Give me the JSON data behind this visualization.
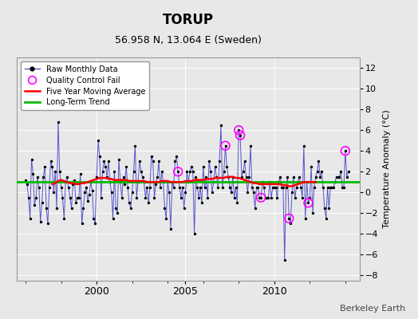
{
  "title": "TORUP",
  "subtitle": "56.958 N, 13.064 E (Sweden)",
  "ylabel": "Temperature Anomaly (°C)",
  "watermark": "Berkeley Earth",
  "ylim": [
    -8.5,
    13.0
  ],
  "xlim": [
    1995.5,
    2014.8
  ],
  "yticks": [
    -8,
    -6,
    -4,
    -2,
    0,
    2,
    4,
    6,
    8,
    10,
    12
  ],
  "bg_color": "#e8e8e8",
  "plot_bg_color": "#e8e8e8",
  "grid_color": "white",
  "raw_color": "#5555cc",
  "raw_dot_color": "black",
  "moving_avg_color": "red",
  "trend_color": "#00bb00",
  "qc_fail_color": "magenta",
  "long_term_trend_value": 1.0,
  "raw_data": [
    [
      1996.0,
      1.2
    ],
    [
      1996.083,
      0.8
    ],
    [
      1996.167,
      -0.5
    ],
    [
      1996.25,
      -2.5
    ],
    [
      1996.333,
      3.2
    ],
    [
      1996.417,
      1.8
    ],
    [
      1996.5,
      -1.2
    ],
    [
      1996.583,
      -0.5
    ],
    [
      1996.667,
      1.5
    ],
    [
      1996.75,
      0.5
    ],
    [
      1996.833,
      -2.8
    ],
    [
      1996.917,
      -1.0
    ],
    [
      1997.0,
      1.5
    ],
    [
      1997.083,
      2.5
    ],
    [
      1997.167,
      -1.5
    ],
    [
      1997.25,
      -3.0
    ],
    [
      1997.333,
      0.5
    ],
    [
      1997.417,
      3.0
    ],
    [
      1997.5,
      2.5
    ],
    [
      1997.583,
      0.0
    ],
    [
      1997.667,
      2.0
    ],
    [
      1997.75,
      -1.5
    ],
    [
      1997.833,
      6.8
    ],
    [
      1997.917,
      2.0
    ],
    [
      1998.0,
      0.5
    ],
    [
      1998.083,
      -0.5
    ],
    [
      1998.167,
      -2.5
    ],
    [
      1998.25,
      1.0
    ],
    [
      1998.333,
      1.5
    ],
    [
      1998.417,
      0.5
    ],
    [
      1998.5,
      -0.5
    ],
    [
      1998.583,
      -1.5
    ],
    [
      1998.667,
      0.8
    ],
    [
      1998.75,
      1.2
    ],
    [
      1998.833,
      -1.0
    ],
    [
      1998.917,
      -0.5
    ],
    [
      1999.0,
      -0.5
    ],
    [
      1999.083,
      1.8
    ],
    [
      1999.167,
      -3.0
    ],
    [
      1999.25,
      -1.5
    ],
    [
      1999.333,
      0.0
    ],
    [
      1999.417,
      0.5
    ],
    [
      1999.5,
      -0.8
    ],
    [
      1999.583,
      -0.2
    ],
    [
      1999.667,
      1.0
    ],
    [
      1999.75,
      0.2
    ],
    [
      1999.833,
      -2.5
    ],
    [
      1999.917,
      -3.0
    ],
    [
      2000.0,
      1.5
    ],
    [
      2000.083,
      5.0
    ],
    [
      2000.167,
      3.5
    ],
    [
      2000.25,
      -0.5
    ],
    [
      2000.333,
      2.0
    ],
    [
      2000.417,
      3.0
    ],
    [
      2000.5,
      2.5
    ],
    [
      2000.583,
      1.5
    ],
    [
      2000.667,
      3.0
    ],
    [
      2000.75,
      1.0
    ],
    [
      2000.833,
      0.0
    ],
    [
      2000.917,
      -2.5
    ],
    [
      2001.0,
      2.0
    ],
    [
      2001.083,
      -1.5
    ],
    [
      2001.167,
      -2.0
    ],
    [
      2001.25,
      3.2
    ],
    [
      2001.333,
      1.0
    ],
    [
      2001.417,
      -0.5
    ],
    [
      2001.5,
      1.5
    ],
    [
      2001.583,
      0.8
    ],
    [
      2001.667,
      2.5
    ],
    [
      2001.75,
      0.5
    ],
    [
      2001.833,
      -1.0
    ],
    [
      2001.917,
      -1.5
    ],
    [
      2002.0,
      0.0
    ],
    [
      2002.083,
      2.0
    ],
    [
      2002.167,
      4.5
    ],
    [
      2002.25,
      -0.5
    ],
    [
      2002.333,
      1.0
    ],
    [
      2002.417,
      3.0
    ],
    [
      2002.5,
      2.0
    ],
    [
      2002.583,
      1.5
    ],
    [
      2002.667,
      1.0
    ],
    [
      2002.75,
      -0.5
    ],
    [
      2002.833,
      0.5
    ],
    [
      2002.917,
      -1.0
    ],
    [
      2003.0,
      0.5
    ],
    [
      2003.083,
      3.5
    ],
    [
      2003.167,
      3.0
    ],
    [
      2003.25,
      -0.5
    ],
    [
      2003.333,
      0.8
    ],
    [
      2003.417,
      1.5
    ],
    [
      2003.5,
      3.0
    ],
    [
      2003.583,
      0.5
    ],
    [
      2003.667,
      2.0
    ],
    [
      2003.75,
      1.0
    ],
    [
      2003.833,
      -1.5
    ],
    [
      2003.917,
      -2.5
    ],
    [
      2004.0,
      1.0
    ],
    [
      2004.083,
      0.0
    ],
    [
      2004.167,
      -3.5
    ],
    [
      2004.25,
      1.0
    ],
    [
      2004.333,
      0.5
    ],
    [
      2004.417,
      3.0
    ],
    [
      2004.5,
      3.5
    ],
    [
      2004.583,
      2.0
    ],
    [
      2004.667,
      0.5
    ],
    [
      2004.75,
      -0.5
    ],
    [
      2004.833,
      0.5
    ],
    [
      2004.917,
      -1.5
    ],
    [
      2005.0,
      0.0
    ],
    [
      2005.083,
      2.0
    ],
    [
      2005.167,
      1.0
    ],
    [
      2005.25,
      2.0
    ],
    [
      2005.333,
      2.5
    ],
    [
      2005.417,
      2.0
    ],
    [
      2005.5,
      -4.0
    ],
    [
      2005.583,
      1.5
    ],
    [
      2005.667,
      0.5
    ],
    [
      2005.75,
      -0.5
    ],
    [
      2005.833,
      0.5
    ],
    [
      2005.917,
      -1.0
    ],
    [
      2006.0,
      2.5
    ],
    [
      2006.083,
      0.5
    ],
    [
      2006.167,
      1.5
    ],
    [
      2006.25,
      -0.5
    ],
    [
      2006.333,
      3.0
    ],
    [
      2006.417,
      2.0
    ],
    [
      2006.5,
      0.0
    ],
    [
      2006.583,
      1.0
    ],
    [
      2006.667,
      2.5
    ],
    [
      2006.75,
      1.5
    ],
    [
      2006.833,
      0.5
    ],
    [
      2006.917,
      3.0
    ],
    [
      2007.0,
      6.5
    ],
    [
      2007.083,
      0.5
    ],
    [
      2007.167,
      2.0
    ],
    [
      2007.25,
      4.5
    ],
    [
      2007.333,
      2.5
    ],
    [
      2007.417,
      1.5
    ],
    [
      2007.5,
      0.5
    ],
    [
      2007.583,
      0.0
    ],
    [
      2007.667,
      1.5
    ],
    [
      2007.75,
      -0.5
    ],
    [
      2007.833,
      0.5
    ],
    [
      2007.917,
      -1.0
    ],
    [
      2008.0,
      6.0
    ],
    [
      2008.083,
      5.5
    ],
    [
      2008.167,
      1.5
    ],
    [
      2008.25,
      2.0
    ],
    [
      2008.333,
      3.0
    ],
    [
      2008.417,
      1.5
    ],
    [
      2008.5,
      0.0
    ],
    [
      2008.583,
      1.5
    ],
    [
      2008.667,
      4.5
    ],
    [
      2008.75,
      0.5
    ],
    [
      2008.833,
      0.0
    ],
    [
      2008.917,
      -1.5
    ],
    [
      2009.0,
      0.5
    ],
    [
      2009.083,
      0.5
    ],
    [
      2009.167,
      -0.5
    ],
    [
      2009.25,
      -0.5
    ],
    [
      2009.333,
      1.0
    ],
    [
      2009.417,
      0.5
    ],
    [
      2009.5,
      -0.5
    ],
    [
      2009.583,
      -0.5
    ],
    [
      2009.667,
      -0.5
    ],
    [
      2009.75,
      1.0
    ],
    [
      2009.833,
      -0.5
    ],
    [
      2009.917,
      0.5
    ],
    [
      2010.0,
      0.5
    ],
    [
      2010.083,
      0.5
    ],
    [
      2010.167,
      -0.5
    ],
    [
      2010.25,
      1.0
    ],
    [
      2010.333,
      1.5
    ],
    [
      2010.417,
      0.5
    ],
    [
      2010.5,
      0.5
    ],
    [
      2010.583,
      -6.5
    ],
    [
      2010.667,
      0.5
    ],
    [
      2010.75,
      1.5
    ],
    [
      2010.833,
      -2.5
    ],
    [
      2010.917,
      -3.0
    ],
    [
      2011.0,
      0.0
    ],
    [
      2011.083,
      1.5
    ],
    [
      2011.167,
      -0.5
    ],
    [
      2011.25,
      0.5
    ],
    [
      2011.333,
      1.0
    ],
    [
      2011.417,
      1.5
    ],
    [
      2011.5,
      0.5
    ],
    [
      2011.583,
      -0.5
    ],
    [
      2011.667,
      4.5
    ],
    [
      2011.75,
      -2.5
    ],
    [
      2011.833,
      1.0
    ],
    [
      2011.917,
      -1.0
    ],
    [
      2012.0,
      -0.5
    ],
    [
      2012.083,
      2.5
    ],
    [
      2012.167,
      -2.0
    ],
    [
      2012.25,
      0.5
    ],
    [
      2012.333,
      1.5
    ],
    [
      2012.417,
      2.0
    ],
    [
      2012.5,
      3.0
    ],
    [
      2012.583,
      1.5
    ],
    [
      2012.667,
      2.0
    ],
    [
      2012.75,
      0.5
    ],
    [
      2012.833,
      -1.5
    ],
    [
      2012.917,
      -2.5
    ],
    [
      2013.0,
      0.5
    ],
    [
      2013.083,
      -1.5
    ],
    [
      2013.167,
      0.5
    ],
    [
      2013.25,
      0.5
    ],
    [
      2013.333,
      0.5
    ],
    [
      2013.417,
      1.0
    ],
    [
      2013.5,
      1.5
    ],
    [
      2013.583,
      1.5
    ],
    [
      2013.667,
      1.5
    ],
    [
      2013.75,
      2.0
    ],
    [
      2013.833,
      0.5
    ],
    [
      2013.917,
      0.5
    ],
    [
      2014.0,
      4.0
    ],
    [
      2014.083,
      1.5
    ],
    [
      2014.167,
      2.0
    ]
  ],
  "qc_fail_points": [
    [
      2004.583,
      2.0
    ],
    [
      2007.25,
      4.5
    ],
    [
      2008.0,
      6.0
    ],
    [
      2008.083,
      5.5
    ],
    [
      2009.25,
      -0.5
    ],
    [
      2010.833,
      -2.5
    ],
    [
      2011.917,
      -1.0
    ],
    [
      2014.0,
      4.0
    ]
  ],
  "moving_avg_data": [
    [
      1997.5,
      0.8
    ],
    [
      1997.667,
      0.9
    ],
    [
      1997.833,
      1.1
    ],
    [
      1998.0,
      1.2
    ],
    [
      1998.167,
      1.1
    ],
    [
      1998.333,
      1.0
    ],
    [
      1998.5,
      0.9
    ],
    [
      1998.667,
      0.9
    ],
    [
      1998.833,
      0.8
    ],
    [
      1999.0,
      0.8
    ],
    [
      1999.167,
      0.9
    ],
    [
      1999.333,
      0.9
    ],
    [
      1999.5,
      1.0
    ],
    [
      1999.667,
      1.1
    ],
    [
      1999.833,
      1.2
    ],
    [
      2000.0,
      1.3
    ],
    [
      2000.167,
      1.4
    ],
    [
      2000.333,
      1.4
    ],
    [
      2000.5,
      1.4
    ],
    [
      2000.667,
      1.3
    ],
    [
      2000.833,
      1.3
    ],
    [
      2001.0,
      1.2
    ],
    [
      2001.167,
      1.2
    ],
    [
      2001.333,
      1.2
    ],
    [
      2001.5,
      1.2
    ],
    [
      2001.667,
      1.2
    ],
    [
      2001.833,
      1.1
    ],
    [
      2002.0,
      1.1
    ],
    [
      2002.167,
      1.1
    ],
    [
      2002.333,
      1.1
    ],
    [
      2002.5,
      1.1
    ],
    [
      2002.667,
      1.1
    ],
    [
      2002.833,
      1.0
    ],
    [
      2003.0,
      1.0
    ],
    [
      2003.167,
      1.0
    ],
    [
      2003.333,
      1.0
    ],
    [
      2003.5,
      1.0
    ],
    [
      2003.667,
      1.1
    ],
    [
      2003.833,
      1.1
    ],
    [
      2004.0,
      1.1
    ],
    [
      2004.167,
      1.0
    ],
    [
      2004.333,
      1.0
    ],
    [
      2004.5,
      1.0
    ],
    [
      2004.667,
      1.0
    ],
    [
      2004.833,
      1.0
    ],
    [
      2005.0,
      1.1
    ],
    [
      2005.167,
      1.1
    ],
    [
      2005.333,
      1.1
    ],
    [
      2005.5,
      1.2
    ],
    [
      2005.667,
      1.2
    ],
    [
      2005.833,
      1.2
    ],
    [
      2006.0,
      1.2
    ],
    [
      2006.167,
      1.3
    ],
    [
      2006.333,
      1.3
    ],
    [
      2006.5,
      1.3
    ],
    [
      2006.667,
      1.4
    ],
    [
      2006.833,
      1.4
    ],
    [
      2007.0,
      1.4
    ],
    [
      2007.167,
      1.4
    ],
    [
      2007.333,
      1.5
    ],
    [
      2007.5,
      1.5
    ],
    [
      2007.667,
      1.5
    ],
    [
      2007.833,
      1.4
    ],
    [
      2008.0,
      1.4
    ],
    [
      2008.167,
      1.3
    ],
    [
      2008.333,
      1.2
    ],
    [
      2008.5,
      1.1
    ],
    [
      2008.667,
      1.0
    ],
    [
      2008.833,
      0.9
    ],
    [
      2009.0,
      0.9
    ],
    [
      2009.167,
      0.8
    ],
    [
      2009.333,
      0.8
    ],
    [
      2009.5,
      0.8
    ],
    [
      2009.667,
      0.8
    ],
    [
      2009.833,
      0.8
    ],
    [
      2010.0,
      0.8
    ],
    [
      2010.167,
      0.8
    ],
    [
      2010.333,
      0.8
    ],
    [
      2010.5,
      0.7
    ],
    [
      2010.667,
      0.7
    ],
    [
      2010.833,
      0.6
    ],
    [
      2011.0,
      0.6
    ],
    [
      2011.167,
      0.7
    ],
    [
      2011.333,
      0.8
    ],
    [
      2011.5,
      0.9
    ],
    [
      2011.667,
      1.0
    ],
    [
      2011.833,
      1.0
    ],
    [
      2012.0,
      1.0
    ],
    [
      2012.167,
      1.0
    ],
    [
      2012.333,
      1.0
    ]
  ]
}
